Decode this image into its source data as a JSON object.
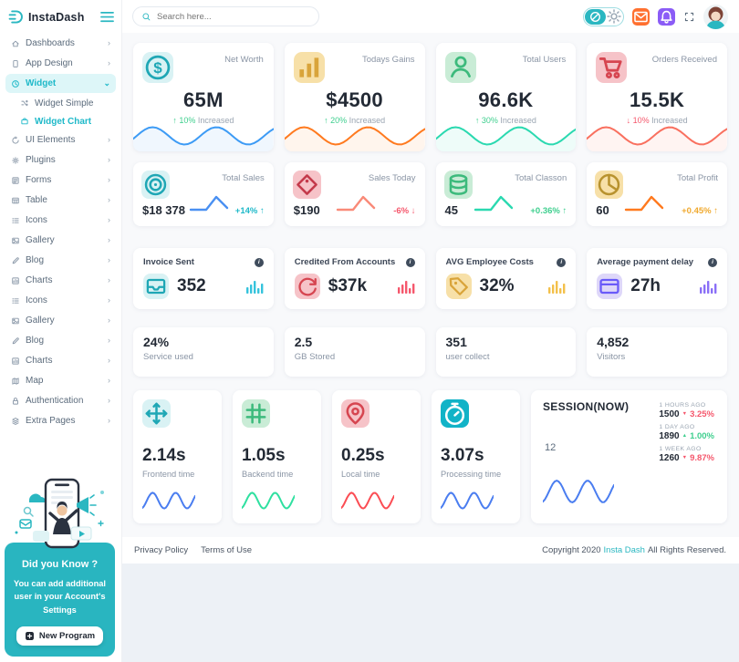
{
  "brand": {
    "name": "InstaDash",
    "accent": "#2ab7c1"
  },
  "header": {
    "search_placeholder": "Search here..."
  },
  "sidebar": {
    "items": [
      {
        "label": "Dashboards",
        "icon": "home"
      },
      {
        "label": "App Design",
        "icon": "mobile"
      },
      {
        "label": "Widget",
        "icon": "clock",
        "active": true,
        "expanded": true,
        "children": [
          {
            "label": "Widget Simple",
            "icon": "shuffle"
          },
          {
            "label": "Widget Chart",
            "icon": "briefcase",
            "active": true
          }
        ]
      },
      {
        "label": "UI Elements",
        "icon": "ui"
      },
      {
        "label": "Plugins",
        "icon": "plugin"
      },
      {
        "label": "Forms",
        "icon": "form"
      },
      {
        "label": "Table",
        "icon": "table"
      },
      {
        "label": "Icons",
        "icon": "icons"
      },
      {
        "label": "Gallery",
        "icon": "gallery"
      },
      {
        "label": "Blog",
        "icon": "blog"
      },
      {
        "label": "Charts",
        "icon": "chart"
      },
      {
        "label": "Icons",
        "icon": "icons"
      },
      {
        "label": "Gallery",
        "icon": "gallery"
      },
      {
        "label": "Blog",
        "icon": "blog"
      },
      {
        "label": "Charts",
        "icon": "chart"
      },
      {
        "label": "Map",
        "icon": "map"
      },
      {
        "label": "Authentication",
        "icon": "auth"
      },
      {
        "label": "Extra Pages",
        "icon": "pages"
      }
    ],
    "promo": {
      "title": "Did you Know ?",
      "text": "You can add additional user in your Account's Settings",
      "button_label": "New Program"
    }
  },
  "stat_cards": [
    {
      "title": "Net Worth",
      "value": "65M",
      "delta_dir": "up",
      "delta_pct": "10%",
      "delta_text": "Increased",
      "delta_color": "#3ecf8e",
      "icon": "dollar",
      "tile_bg": "#d9f2f4",
      "tile_color": "#1fa7b5",
      "wave_color": "#3d9bf5"
    },
    {
      "title": "Todays Gains",
      "value": "$4500",
      "delta_dir": "up",
      "delta_pct": "20%",
      "delta_text": "Increased",
      "delta_color": "#3ecf8e",
      "icon": "bars",
      "tile_bg": "#f7e0a8",
      "tile_color": "#d9a43a",
      "wave_color": "#ff7a1f"
    },
    {
      "title": "Total Users",
      "value": "96.6K",
      "delta_dir": "up",
      "delta_pct": "30%",
      "delta_text": "Increased",
      "delta_color": "#3ecf8e",
      "icon": "users",
      "tile_bg": "#c9ecd6",
      "tile_color": "#3cba7c",
      "wave_color": "#2bd9b0"
    },
    {
      "title": "Orders Received",
      "value": "15.5K",
      "delta_dir": "down",
      "delta_pct": "10%",
      "delta_text": "Increased",
      "delta_color": "#f5576c",
      "icon": "cart",
      "tile_bg": "#f6c3c8",
      "tile_color": "#d64550",
      "wave_color": "#f9705f"
    }
  ],
  "sales_cards": [
    {
      "title": "Total Sales",
      "value": "$18 378",
      "pct": "+14%",
      "dir": "up",
      "pct_color": "#1fb9c9",
      "icon": "disc",
      "tile_bg": "#d9f2f4",
      "tile_color": "#1fa7b5",
      "line_color": "#4a90f2"
    },
    {
      "title": "Sales Today",
      "value": "$190",
      "pct": "-6%",
      "dir": "down",
      "pct_color": "#f5576c",
      "icon": "tagAlt",
      "tile_bg": "#f6c3c8",
      "tile_color": "#c43a4b",
      "line_color": "#f98a78"
    },
    {
      "title": "Total Classon",
      "value": "45",
      "pct": "+0.36%",
      "dir": "up",
      "pct_color": "#3ecf8e",
      "icon": "database",
      "tile_bg": "#c9ecd6",
      "tile_color": "#3cba7c",
      "line_color": "#2bd9b0"
    },
    {
      "title": "Total Profit",
      "value": "60",
      "pct": "+0.45%",
      "dir": "up",
      "pct_color": "#f0a92e",
      "icon": "pie",
      "tile_bg": "#f7e0a8",
      "tile_color": "#b8922e",
      "line_color": "#ff7a1f"
    }
  ],
  "metric_cards": [
    {
      "title": "Invoice Sent",
      "value": "352",
      "icon": "inbox",
      "tile_bg": "#d9f2f4",
      "tile_color": "#1fa7b5",
      "bars_color": "#35c3dc"
    },
    {
      "title": "Credited From Accounts",
      "value": "$37k",
      "icon": "refresh",
      "tile_bg": "#f6c3c8",
      "tile_color": "#d64550",
      "bars_color": "#f5576c"
    },
    {
      "title": "AVG Employee Costs",
      "value": "32%",
      "icon": "tag",
      "tile_bg": "#f7e0a8",
      "tile_color": "#d9a43a",
      "bars_color": "#f3c04a"
    },
    {
      "title": "Average payment delay",
      "value": "27h",
      "icon": "card",
      "tile_bg": "#ded7f9",
      "tile_color": "#6a5af9",
      "bars_color": "#8a6ff7"
    }
  ],
  "simple_cards": [
    {
      "value": "24%",
      "label": "Service used"
    },
    {
      "value": "2.5",
      "label": "GB Stored"
    },
    {
      "value": "351",
      "label": "user collect"
    },
    {
      "value": "4,852",
      "label": "Visitors"
    }
  ],
  "time_cards": [
    {
      "value": "2.14s",
      "label": "Frontend time",
      "icon": "move",
      "tile_bg": "#d9f2f4",
      "tile_color": "#1fa7b5",
      "wave_color": "#4a7df0"
    },
    {
      "value": "1.05s",
      "label": "Backend time",
      "icon": "hash",
      "tile_bg": "#c9ecd6",
      "tile_color": "#3cba7c",
      "wave_color": "#2fe0a0"
    },
    {
      "value": "0.25s",
      "label": "Local time",
      "icon": "pin",
      "tile_bg": "#f6c3c8",
      "tile_color": "#d64550",
      "wave_color": "#fb4d54"
    },
    {
      "value": "3.07s",
      "label": "Processing time",
      "icon": "stopwatch",
      "tile_bg": "#12b3c7",
      "tile_color": "#ffffff",
      "wave_color": "#4a7df0"
    }
  ],
  "session": {
    "title": "SESSION(NOW)",
    "current": "12",
    "wave_color": "#4a7df0",
    "stats": [
      {
        "label": "1 HOURS AGO",
        "value": "1500",
        "dir": "down",
        "pct": "3.25%",
        "color": "#f5576c"
      },
      {
        "label": "1 DAY AGO",
        "value": "1890",
        "dir": "up",
        "pct": "1.00%",
        "color": "#3ecf8e"
      },
      {
        "label": "1 WEEK AGO",
        "value": "1260",
        "dir": "down",
        "pct": "9.87%",
        "color": "#f5576c"
      }
    ]
  },
  "footer": {
    "links": [
      "Privacy Policy",
      "Terms of Use"
    ],
    "copyright_prefix": "Copyright 2020",
    "brand": "Insta Dash",
    "copyright_suffix": "All Rights Reserved."
  }
}
